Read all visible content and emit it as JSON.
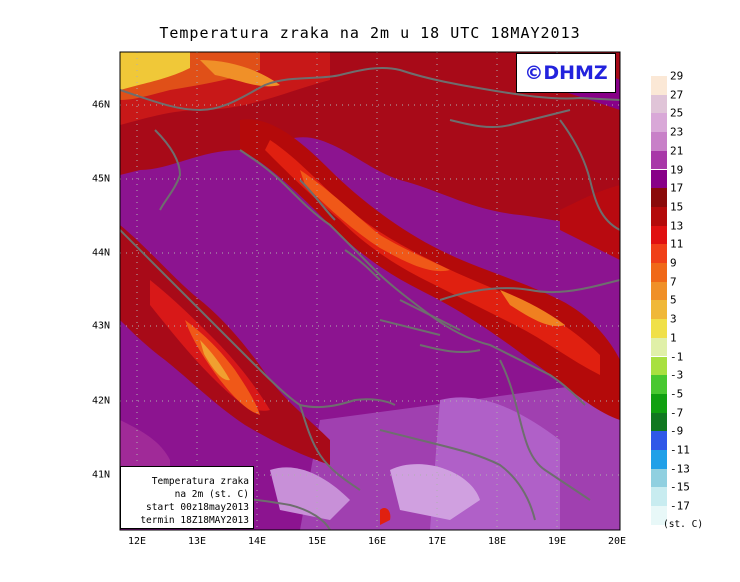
{
  "title": "Temperatura zraka na 2m u 18 UTC 18MAY2013",
  "logo": "©DHMZ",
  "infobox": {
    "line1": "Temperatura zraka",
    "line2": "na 2m (st. C)",
    "line3": "start 00z18may2013",
    "line4": "termin 18Z18MAY2013"
  },
  "axes": {
    "lon_ticks": [
      "12E",
      "13E",
      "14E",
      "15E",
      "16E",
      "17E",
      "18E",
      "19E",
      "20E"
    ],
    "lat_ticks": [
      "46N",
      "45N",
      "44N",
      "43N",
      "42N",
      "41N"
    ],
    "lon_range": [
      11.7,
      20.0
    ],
    "lat_range": [
      40.25,
      46.75
    ]
  },
  "legend": {
    "labels": [
      "29",
      "27",
      "25",
      "23",
      "21",
      "19",
      "17",
      "15",
      "13",
      "11",
      "9",
      "7",
      "5",
      "3",
      "1",
      "-1",
      "-3",
      "-5",
      "-7",
      "-9",
      "-11",
      "-13",
      "-15",
      "-17"
    ],
    "units": "(st. C)",
    "colors": [
      "#fbe8d6",
      "#e0c4d8",
      "#d9a8d8",
      "#c880c8",
      "#a838a8",
      "#880088",
      "#8a0a0a",
      "#b40a0a",
      "#e01010",
      "#f04018",
      "#f06818",
      "#f09028",
      "#f0b838",
      "#f0e048",
      "#e0f0a8",
      "#a8e040",
      "#48c830",
      "#10a010",
      "#107820",
      "#3058e8",
      "#20a0e8",
      "#90d0e0",
      "#c8ecf0",
      "#e8f8f8"
    ]
  },
  "colors": {
    "frame": "#000000",
    "coast": "#6e6e6e",
    "grid": "#b0b0b0",
    "sea": "#8c1490",
    "land_warm": "#a80a18"
  }
}
